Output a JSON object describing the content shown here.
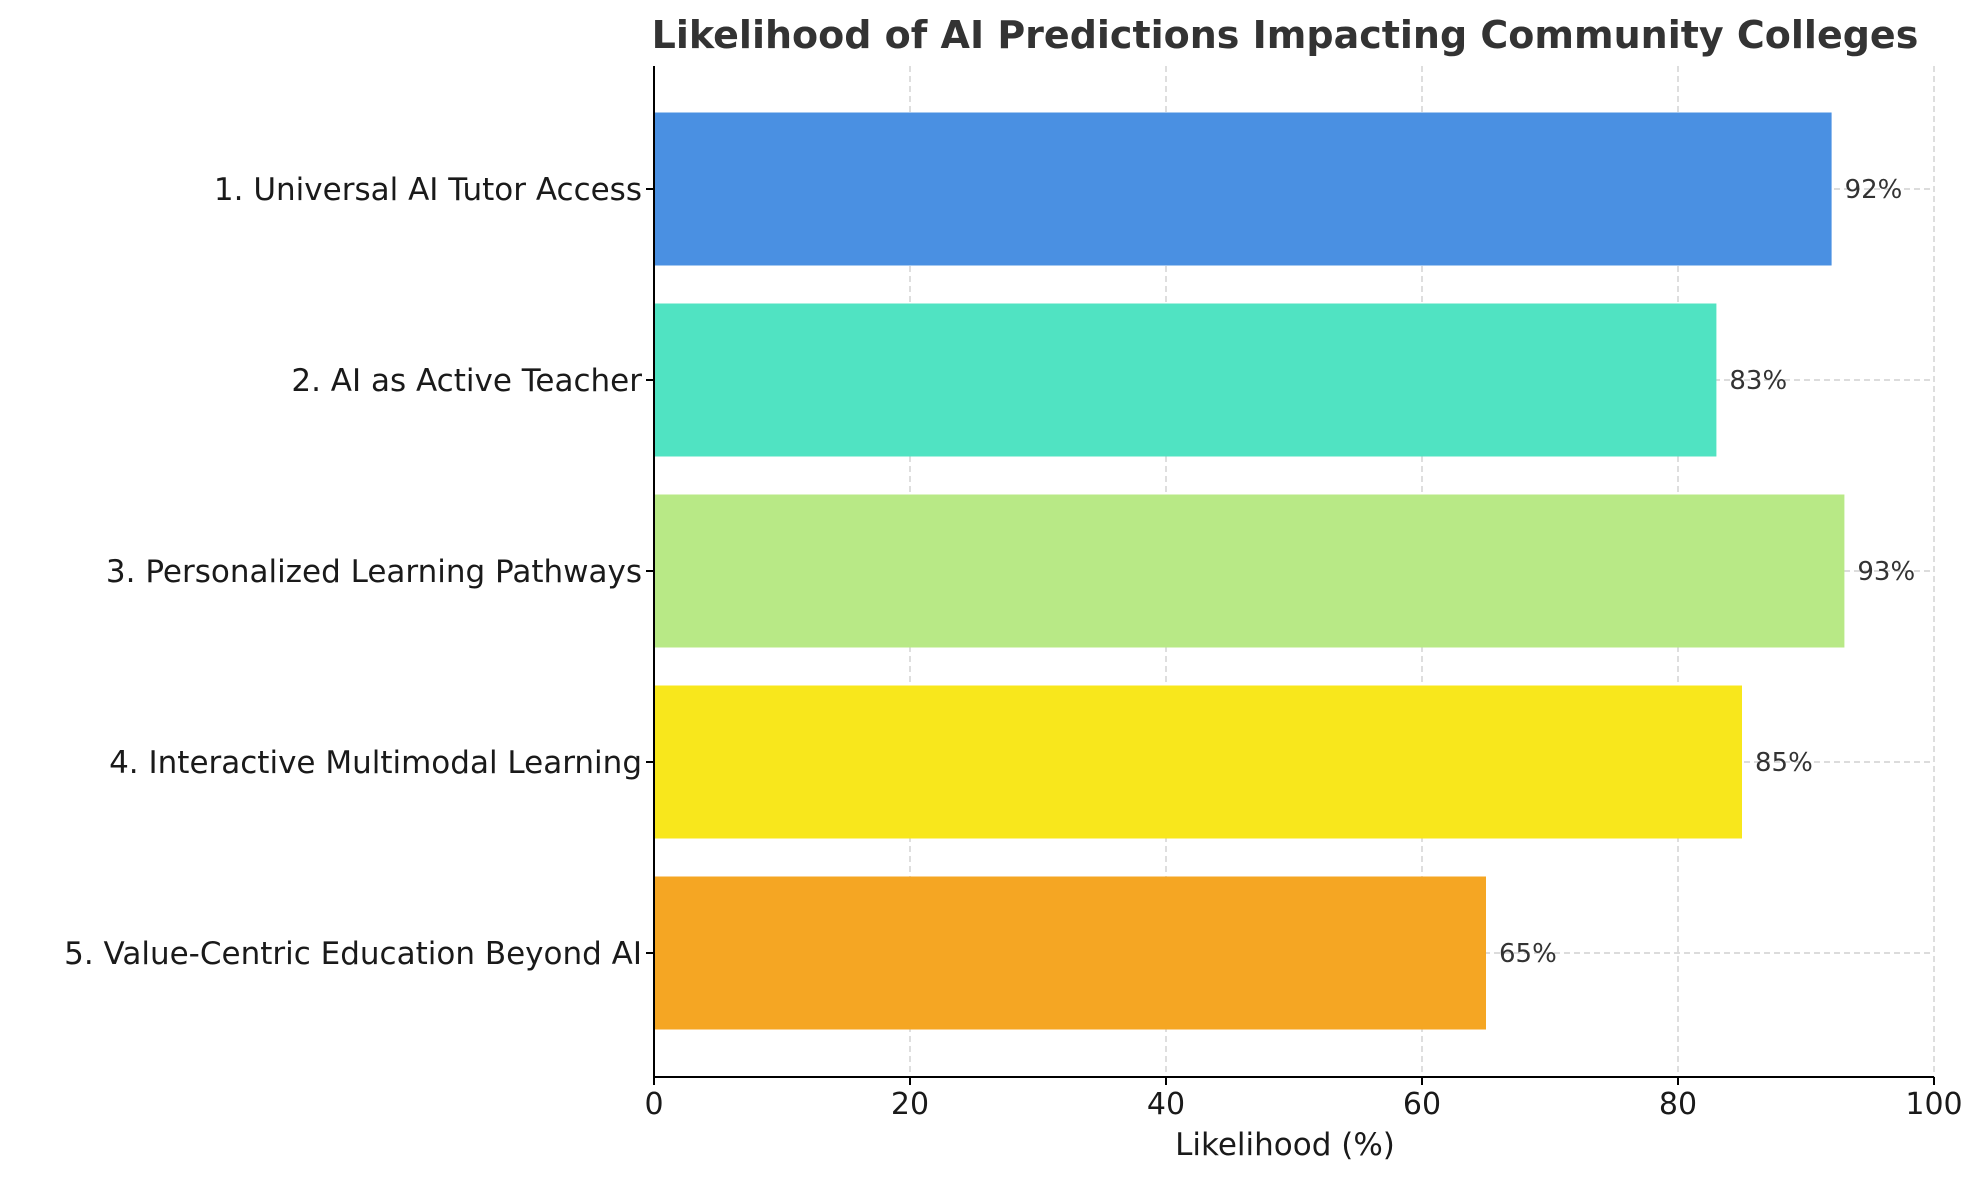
{
  "chart_data": {
    "type": "bar",
    "orientation": "horizontal",
    "title": "Likelihood of AI Predictions Impacting Community Colleges",
    "xlabel": "Likelihood (%)",
    "ylabel": "",
    "xlim": [
      0,
      100
    ],
    "xticks": [
      "0",
      "20",
      "40",
      "60",
      "80",
      "100"
    ],
    "grid": true,
    "legend": "none",
    "categories": [
      "1. Universal AI Tutor Access",
      "2. AI as Active Teacher",
      "3. Personalized Learning Pathways",
      "4. Interactive Multimodal Learning",
      "5. Value-Centric Education Beyond AI"
    ],
    "values": [
      92,
      83,
      93,
      85,
      65
    ],
    "value_labels": [
      "92%",
      "83%",
      "93%",
      "85%",
      "65%"
    ],
    "colors": [
      "#4a90e2",
      "#50e3c2",
      "#b8e986",
      "#f8e71c",
      "#f5a623"
    ]
  }
}
